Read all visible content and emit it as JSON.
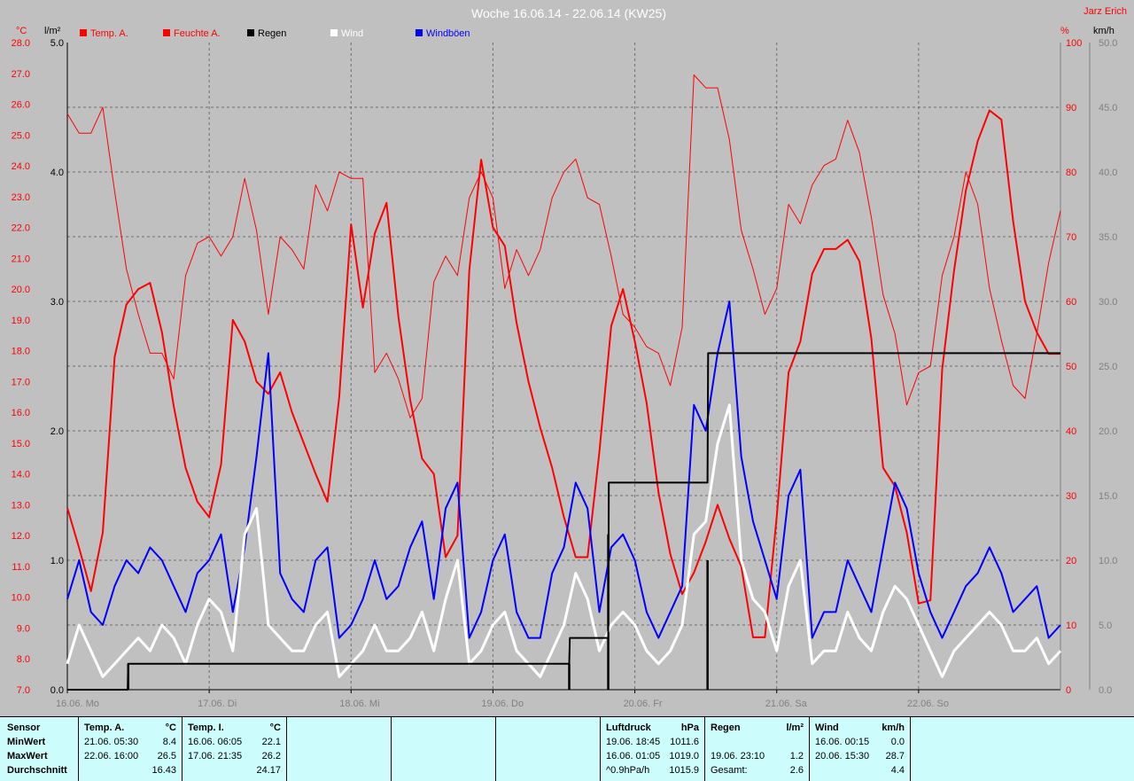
{
  "chart_data": {
    "type": "line",
    "title": "Woche 16.06.14 - 22.06.14 (KW25)",
    "author": "Jarz Erich",
    "axes": {
      "temp": {
        "unit": "°C",
        "min": 7,
        "max": 28,
        "ticks": [
          "28.0",
          "27.0",
          "26.0",
          "25.0",
          "24.0",
          "23.0",
          "22.0",
          "21.0",
          "20.0",
          "19.0",
          "18.0",
          "17.0",
          "16.0",
          "15.0",
          "14.0",
          "13.0",
          "12.0",
          "11.0",
          "10.0",
          "9.0",
          "8.0",
          "7.0"
        ]
      },
      "rain": {
        "unit": "l/m²",
        "min": 0,
        "max": 5,
        "ticks": [
          "5.0",
          "4.0",
          "3.0",
          "2.0",
          "1.0",
          "0.0"
        ]
      },
      "humidity": {
        "unit": "%",
        "min": 0,
        "max": 100,
        "ticks": [
          "100",
          "90",
          "80",
          "70",
          "60",
          "50",
          "40",
          "30",
          "20",
          "10",
          "0"
        ]
      },
      "wind": {
        "unit": "km/h",
        "min": 0,
        "max": 50,
        "ticks": [
          "50.0",
          "45.0",
          "40.0",
          "35.0",
          "30.0",
          "25.0",
          "20.0",
          "15.0",
          "10.0",
          "5.0",
          "0.0"
        ]
      }
    },
    "x_ticks": [
      "16.06.  Mo",
      "17.06.  Di",
      "18.06.  Mi",
      "19.06.  Do",
      "20.06.  Fr",
      "21.06.  Sa",
      "22.06.  So"
    ],
    "grid": true,
    "legend": [
      {
        "name": "Temp. A.",
        "color": "#ff0000"
      },
      {
        "name": "Feuchte A.",
        "color": "#ff0000"
      },
      {
        "name": "Regen",
        "color": "#000000"
      },
      {
        "name": "Wind",
        "color": "#ffffff"
      },
      {
        "name": "Windböen",
        "color": "#0000ff"
      }
    ],
    "series": [
      {
        "name": "Temp. A.",
        "axis": "temp",
        "color": "#ff0000",
        "width": 2,
        "x": [
          0,
          2,
          4,
          6,
          8,
          10,
          12,
          14,
          16,
          18,
          20,
          22,
          24,
          26,
          28,
          30,
          32,
          34,
          36,
          38,
          40,
          42,
          44,
          46,
          48,
          50,
          52,
          54,
          56,
          58,
          60,
          62,
          64,
          66,
          68,
          70,
          72,
          74,
          76,
          78,
          80,
          82,
          84,
          86,
          88,
          90,
          92,
          94,
          96,
          98,
          100,
          102,
          104,
          106,
          108,
          110,
          112,
          114,
          116,
          118,
          120,
          122,
          124,
          126,
          128,
          130,
          132,
          134,
          136,
          138,
          140,
          142,
          144,
          146,
          148,
          150,
          152,
          154,
          156,
          158,
          160,
          162,
          164,
          166,
          168
        ],
        "values": [
          12.9,
          11.6,
          10.2,
          12.1,
          17.8,
          19.5,
          20.0,
          20.2,
          18.6,
          16.2,
          14.2,
          13.1,
          12.6,
          14.3,
          19.0,
          18.3,
          17.0,
          16.6,
          17.3,
          16.0,
          15.0,
          14.0,
          13.1,
          16.5,
          22.1,
          19.4,
          21.8,
          22.8,
          19.1,
          16.4,
          14.5,
          14.0,
          11.3,
          12.0,
          20.6,
          24.2,
          22.0,
          21.4,
          18.9,
          17.0,
          15.5,
          14.2,
          12.6,
          11.3,
          11.3,
          14.7,
          18.8,
          20.0,
          18.3,
          16.3,
          13.4,
          11.4,
          10.1,
          10.8,
          11.8,
          13.0,
          11.9,
          11.0,
          8.7,
          8.7,
          12.6,
          17.3,
          18.3,
          20.5,
          21.3,
          21.3,
          21.6,
          20.9,
          18.4,
          14.2,
          13.6,
          12.1,
          9.8,
          9.9,
          17.4,
          20.6,
          23.2,
          24.8,
          25.8,
          25.5,
          22.2,
          19.6,
          18.6,
          17.9,
          17.9
        ]
      },
      {
        "name": "Feuchte A.",
        "axis": "humidity",
        "color": "#ff0000",
        "width": 1,
        "x": [
          0,
          2,
          4,
          6,
          8,
          10,
          12,
          14,
          16,
          18,
          20,
          22,
          24,
          26,
          28,
          30,
          32,
          34,
          36,
          38,
          40,
          42,
          44,
          46,
          48,
          50,
          52,
          54,
          56,
          58,
          60,
          62,
          64,
          66,
          68,
          70,
          72,
          74,
          76,
          78,
          80,
          82,
          84,
          86,
          88,
          90,
          92,
          94,
          96,
          98,
          100,
          102,
          104,
          106,
          108,
          110,
          112,
          114,
          116,
          118,
          120,
          122,
          124,
          126,
          128,
          130,
          132,
          134,
          136,
          138,
          140,
          142,
          144,
          146,
          148,
          150,
          152,
          154,
          156,
          158,
          160,
          162,
          164,
          166,
          168
        ],
        "values": [
          89,
          86,
          86,
          90,
          77,
          65,
          58,
          52,
          52,
          48,
          64,
          69,
          70,
          67,
          70,
          79,
          71,
          58,
          70,
          68,
          65,
          78,
          74,
          80,
          79,
          79,
          49,
          52,
          48,
          42,
          45,
          63,
          67,
          64,
          76,
          80,
          76,
          62,
          68,
          64,
          68,
          76,
          80,
          82,
          76,
          75,
          67,
          58,
          56,
          53,
          52,
          47,
          56,
          95,
          93,
          93,
          85,
          71,
          65,
          58,
          62,
          75,
          72,
          78,
          81,
          82,
          88,
          83,
          73,
          61,
          55,
          44,
          49,
          50,
          64,
          70,
          80,
          75,
          62,
          54,
          47,
          45,
          55,
          66,
          74
        ]
      },
      {
        "name": "Windböen",
        "axis": "wind",
        "color": "#0000ff",
        "width": 2,
        "x": [
          0,
          2,
          4,
          6,
          8,
          10,
          12,
          14,
          16,
          18,
          20,
          22,
          24,
          26,
          28,
          30,
          32,
          34,
          36,
          38,
          40,
          42,
          44,
          46,
          48,
          50,
          52,
          54,
          56,
          58,
          60,
          62,
          64,
          66,
          68,
          70,
          72,
          74,
          76,
          78,
          80,
          82,
          84,
          86,
          88,
          90,
          92,
          94,
          96,
          98,
          100,
          102,
          104,
          106,
          108,
          110,
          112,
          114,
          116,
          118,
          120,
          122,
          124,
          126,
          128,
          130,
          132,
          134,
          136,
          138,
          140,
          142,
          144,
          146,
          148,
          150,
          152,
          154,
          156,
          158,
          160,
          162,
          164,
          166,
          168
        ],
        "values": [
          7,
          10,
          6,
          5,
          8,
          10,
          9,
          11,
          10,
          8,
          6,
          9,
          10,
          12,
          6,
          11,
          18,
          26,
          9,
          7,
          6,
          10,
          11,
          4,
          5,
          7,
          10,
          7,
          8,
          11,
          13,
          7,
          14,
          16,
          4,
          6,
          10,
          12,
          6,
          4,
          4,
          9,
          11,
          16,
          14,
          6,
          11,
          12,
          10,
          6,
          4,
          6,
          8,
          22,
          20,
          26,
          30,
          18,
          13,
          10,
          7,
          15,
          17,
          4,
          6,
          6,
          10,
          8,
          6,
          11,
          16,
          14,
          9,
          6,
          4,
          6,
          8,
          9,
          11,
          9,
          6,
          7,
          8,
          4,
          5
        ]
      },
      {
        "name": "Wind",
        "axis": "wind",
        "color": "#ffffff",
        "width": 3,
        "x": [
          0,
          2,
          4,
          6,
          8,
          10,
          12,
          14,
          16,
          18,
          20,
          22,
          24,
          26,
          28,
          30,
          32,
          34,
          36,
          38,
          40,
          42,
          44,
          46,
          48,
          50,
          52,
          54,
          56,
          58,
          60,
          62,
          64,
          66,
          68,
          70,
          72,
          74,
          76,
          78,
          80,
          82,
          84,
          86,
          88,
          90,
          92,
          94,
          96,
          98,
          100,
          102,
          104,
          106,
          108,
          110,
          112,
          114,
          116,
          118,
          120,
          122,
          124,
          126,
          128,
          130,
          132,
          134,
          136,
          138,
          140,
          142,
          144,
          146,
          148,
          150,
          152,
          154,
          156,
          158,
          160,
          162,
          164,
          166,
          168
        ],
        "values": [
          2,
          5,
          3,
          1,
          2,
          3,
          4,
          3,
          5,
          4,
          2,
          5,
          7,
          6,
          3,
          12,
          14,
          5,
          4,
          3,
          3,
          5,
          6,
          1,
          2,
          3,
          5,
          3,
          3,
          4,
          6,
          3,
          7,
          10,
          2,
          3,
          5,
          6,
          3,
          2,
          1,
          3,
          5,
          9,
          7,
          3,
          5,
          6,
          5,
          3,
          2,
          3,
          5,
          12,
          13,
          19,
          22,
          10,
          7,
          6,
          3,
          8,
          10,
          2,
          3,
          3,
          6,
          4,
          3,
          6,
          8,
          7,
          5,
          3,
          1,
          3,
          4,
          5,
          6,
          5,
          3,
          3,
          4,
          2,
          3
        ]
      },
      {
        "name": "Regen",
        "axis": "rain",
        "color": "#000000",
        "width": 2,
        "x": [
          0,
          10.2,
          10.3,
          84.9,
          85.0,
          91.5,
          91.6,
          108.3,
          108.4,
          168
        ],
        "values": [
          0,
          0,
          0.2,
          0.2,
          0.4,
          0.4,
          1.6,
          1.6,
          2.6,
          2.6
        ]
      }
    ],
    "rain_bars": {
      "x": [
        10.3,
        84.9,
        91.5,
        108.3
      ],
      "values": [
        0.2,
        0.2,
        1.2,
        1.0
      ]
    }
  },
  "summary": {
    "sensor": {
      "title": "Sensor",
      "rows": [
        "MinWert",
        "MaxWert",
        "Durchschnitt"
      ]
    },
    "temp_a": {
      "title": "Temp. A.",
      "unit": "°C",
      "rows": [
        [
          "21.06.  05:30",
          "8.4"
        ],
        [
          "22.06.  16:00",
          "26.5"
        ],
        [
          "",
          "16.43"
        ]
      ]
    },
    "temp_i": {
      "title": "Temp. I.",
      "unit": "°C",
      "rows": [
        [
          "16.06.  06:05",
          "22.1"
        ],
        [
          "17.06.  21:35",
          "26.2"
        ],
        [
          "",
          "24.17"
        ]
      ]
    },
    "luftdruck": {
      "title": "Luftdruck",
      "unit": "hPa",
      "rows": [
        [
          "19.06.  18:45",
          "1011.6"
        ],
        [
          "16.06.  01:05",
          "1019.0"
        ],
        [
          "^0.9hPa/h",
          "1015.9"
        ]
      ]
    },
    "regen": {
      "title": "Regen",
      "unit": "l/m²",
      "rows": [
        [
          "",
          ""
        ],
        [
          "19.06.  23:10",
          "1.2"
        ],
        [
          "Gesamt:",
          "2.6"
        ]
      ]
    },
    "wind": {
      "title": "Wind",
      "unit": "km/h",
      "rows": [
        [
          "16.06.  00:15",
          "0.0"
        ],
        [
          "20.06.  15:30",
          "28.7"
        ],
        [
          "",
          "4.4"
        ]
      ]
    }
  }
}
